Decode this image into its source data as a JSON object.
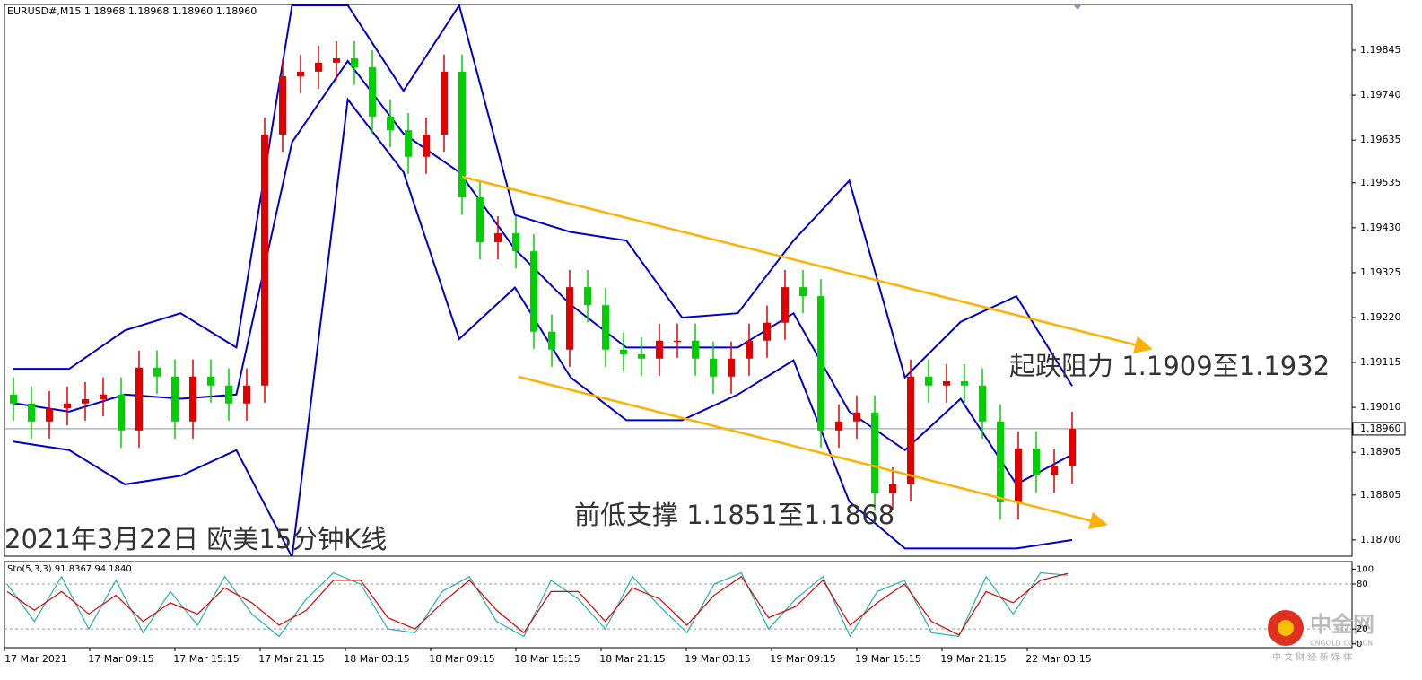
{
  "chart_data": {
    "type": "candlestick",
    "header": "EURUSD#,M15  1.18968 1.18968 1.18960 1.18960",
    "title": "2021年3月22日 欧美15分钟K线",
    "annotations": [
      "起跌阻力 1.1909至1.1932",
      "前低支撑 1.1851至1.1868"
    ],
    "x_labels": [
      "17 Mar 2021",
      "17 Mar 09:15",
      "17 Mar 15:15",
      "17 Mar 21:15",
      "18 Mar 03:15",
      "18 Mar 09:15",
      "18 Mar 15:15",
      "18 Mar 21:15",
      "19 Mar 03:15",
      "19 Mar 09:15",
      "19 Mar 15:15",
      "19 Mar 21:15",
      "22 Mar 03:15"
    ],
    "ylim": [
      1.18662,
      1.19952
    ],
    "yticks": [
      {
        "value": 1.19845,
        "label": "1.19845"
      },
      {
        "value": 1.1974,
        "label": "1.19740"
      },
      {
        "value": 1.19635,
        "label": "1.19635"
      },
      {
        "value": 1.19535,
        "label": "1.19535"
      },
      {
        "value": 1.1943,
        "label": "1.19430"
      },
      {
        "value": 1.19325,
        "label": "1.19325"
      },
      {
        "value": 1.1922,
        "label": "1.19220"
      },
      {
        "value": 1.19115,
        "label": "1.19115"
      },
      {
        "value": 1.1901,
        "label": "1.19010"
      },
      {
        "value": 1.18905,
        "label": "1.18905"
      },
      {
        "value": 1.18805,
        "label": "1.18805"
      },
      {
        "value": 1.187,
        "label": "1.18700"
      }
    ],
    "current_price": {
      "value": 1.1896,
      "label": "1.18960"
    },
    "up_color": "#e00000",
    "down_color": "#00d000",
    "band_color": "#0000cc",
    "open": [
      1.1904,
      1.19019,
      1.18977,
      1.19008,
      1.19019,
      1.19029,
      1.1904,
      1.18956,
      1.19103,
      1.19082,
      1.18977,
      1.19082,
      1.19061,
      1.19019,
      1.19061,
      1.19648,
      1.19784,
      1.19795,
      1.19816,
      1.19826,
      1.19805,
      1.1969,
      1.19658,
      1.19596,
      1.19648,
      1.19795,
      1.19501,
      1.19396,
      1.19417,
      1.19375,
      1.19187,
      1.19145,
      1.19291,
      1.19249,
      1.19145,
      1.19134,
      1.19124,
      1.19166,
      1.19166,
      1.19124,
      1.19082,
      1.19124,
      1.19166,
      1.19208,
      1.19291,
      1.1927,
      1.18956,
      1.18977,
      1.18998,
      1.18809,
      1.1883,
      1.19082,
      1.19061,
      1.19071,
      1.19061,
      1.18977,
      1.18788,
      1.18914,
      1.18851,
      1.18872
    ],
    "high": [
      1.1908,
      1.19059,
      1.19048,
      1.19059,
      1.19069,
      1.1908,
      1.1908,
      1.19143,
      1.19143,
      1.19122,
      1.19122,
      1.19122,
      1.19101,
      1.19101,
      1.19688,
      1.19824,
      1.19835,
      1.19856,
      1.19866,
      1.19866,
      1.19845,
      1.1973,
      1.19698,
      1.19688,
      1.19835,
      1.19835,
      1.19541,
      1.19457,
      1.19457,
      1.19415,
      1.19227,
      1.19331,
      1.19331,
      1.19289,
      1.19185,
      1.19174,
      1.19206,
      1.19206,
      1.19206,
      1.19164,
      1.19164,
      1.19206,
      1.19248,
      1.19331,
      1.19331,
      1.1931,
      1.19017,
      1.19038,
      1.19038,
      1.1887,
      1.19122,
      1.19122,
      1.19111,
      1.19111,
      1.19101,
      1.19017,
      1.18954,
      1.18954,
      1.18912,
      1.19
    ],
    "low": [
      1.18979,
      1.18937,
      1.18937,
      1.18968,
      1.18979,
      1.18989,
      1.18916,
      1.18916,
      1.19042,
      1.18937,
      1.18937,
      1.19021,
      1.18979,
      1.18979,
      1.19021,
      1.19608,
      1.19744,
      1.19755,
      1.19776,
      1.19765,
      1.1965,
      1.19618,
      1.19556,
      1.19556,
      1.19608,
      1.19461,
      1.19356,
      1.19356,
      1.19335,
      1.19147,
      1.19105,
      1.19105,
      1.19209,
      1.19105,
      1.19094,
      1.19084,
      1.19084,
      1.19126,
      1.19084,
      1.19042,
      1.19042,
      1.19084,
      1.19126,
      1.19168,
      1.1923,
      1.18916,
      1.18916,
      1.18937,
      1.18769,
      1.18769,
      1.1879,
      1.19021,
      1.19021,
      1.19021,
      1.18937,
      1.18748,
      1.18748,
      1.18811,
      1.18811,
      1.18832
    ],
    "close": [
      1.19019,
      1.18977,
      1.19008,
      1.19019,
      1.19029,
      1.1904,
      1.18956,
      1.19103,
      1.19082,
      1.18977,
      1.19082,
      1.19061,
      1.19019,
      1.19061,
      1.19648,
      1.19784,
      1.19795,
      1.19816,
      1.19826,
      1.19805,
      1.1969,
      1.19658,
      1.19596,
      1.19648,
      1.19795,
      1.19501,
      1.19396,
      1.19417,
      1.19375,
      1.19187,
      1.19145,
      1.19291,
      1.19249,
      1.19145,
      1.19134,
      1.19124,
      1.19166,
      1.19166,
      1.19124,
      1.19082,
      1.19124,
      1.19166,
      1.19208,
      1.19291,
      1.1927,
      1.18956,
      1.18977,
      1.18998,
      1.18809,
      1.1883,
      1.19082,
      1.19061,
      1.19071,
      1.19061,
      1.18977,
      1.18788,
      1.18914,
      1.18851,
      1.18872,
      1.1896
    ],
    "bands": [
      {
        "values": [
          1.191,
          1.191,
          1.1919,
          1.1923,
          1.1915,
          1.1995,
          1.1995,
          1.1975,
          1.1995,
          1.1946,
          1.1942,
          1.194,
          1.1922,
          1.1923,
          1.194,
          1.1954,
          1.1908,
          1.1921,
          1.1927,
          1.1906
        ]
      },
      {
        "values": [
          1.1902,
          1.19,
          1.1904,
          1.1903,
          1.1904,
          1.1963,
          1.1982,
          1.1965,
          1.1956,
          1.1938,
          1.1925,
          1.1915,
          1.1915,
          1.1915,
          1.1923,
          1.19,
          1.1891,
          1.1903,
          1.1883,
          1.189
        ]
      },
      {
        "values": [
          1.1893,
          1.1891,
          1.1883,
          1.1885,
          1.1891,
          1.1866,
          1.1973,
          1.1956,
          1.1917,
          1.1929,
          1.1908,
          1.1898,
          1.1898,
          1.1904,
          1.1912,
          1.1879,
          1.1868,
          1.1868,
          1.1868,
          1.187
        ]
      }
    ],
    "stochastic": {
      "label": "Sto(5,3,3) 91.8367 94.1840",
      "ylim": [
        -5,
        110
      ],
      "yticks": [
        100,
        80,
        20,
        0
      ],
      "levels": [
        80,
        20
      ],
      "series": [
        {
          "color": "#20b2aa",
          "values": [
            80,
            30,
            90,
            20,
            85,
            15,
            70,
            25,
            90,
            40,
            10,
            60,
            95,
            80,
            20,
            15,
            70,
            90,
            30,
            10,
            85,
            60,
            20,
            90,
            50,
            15,
            80,
            95,
            20,
            60,
            90,
            10,
            70,
            85,
            15,
            10,
            90,
            40,
            95,
            91.8367
          ]
        },
        {
          "color": "#e00000",
          "values": [
            70,
            45,
            70,
            40,
            65,
            30,
            55,
            40,
            75,
            55,
            25,
            45,
            85,
            85,
            35,
            20,
            55,
            85,
            45,
            15,
            70,
            70,
            30,
            75,
            60,
            25,
            65,
            90,
            35,
            50,
            85,
            25,
            55,
            80,
            30,
            12,
            70,
            55,
            85,
            94.184
          ]
        }
      ]
    },
    "logo": {
      "name": "中金网",
      "site": "CNGOLD.COM.CN",
      "slogan": "中 文 财 经 新 媒 体"
    }
  }
}
